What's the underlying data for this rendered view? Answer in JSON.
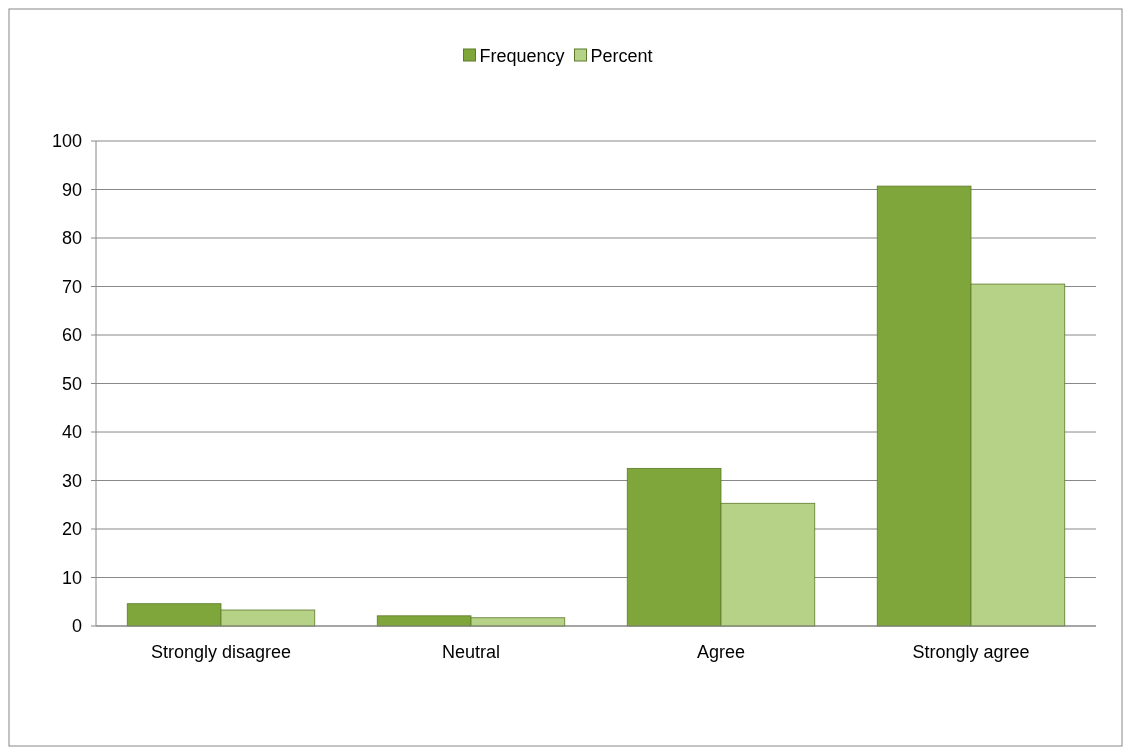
{
  "chart_data": {
    "type": "bar",
    "categories": [
      "Strongly disagree",
      "Neutral",
      "Agree",
      "Strongly agree"
    ],
    "series": [
      {
        "name": "Frequency",
        "color": "#7fa63a",
        "values": [
          4.6,
          2.1,
          32.5,
          90.7
        ]
      },
      {
        "name": "Percent",
        "color": "#b5d287",
        "values": [
          3.3,
          1.7,
          25.3,
          70.5
        ]
      }
    ],
    "ylim": [
      0,
      100
    ],
    "yticks": [
      0,
      10,
      20,
      30,
      40,
      50,
      60,
      70,
      80,
      90,
      100
    ],
    "grid": "y",
    "legend": "top"
  }
}
